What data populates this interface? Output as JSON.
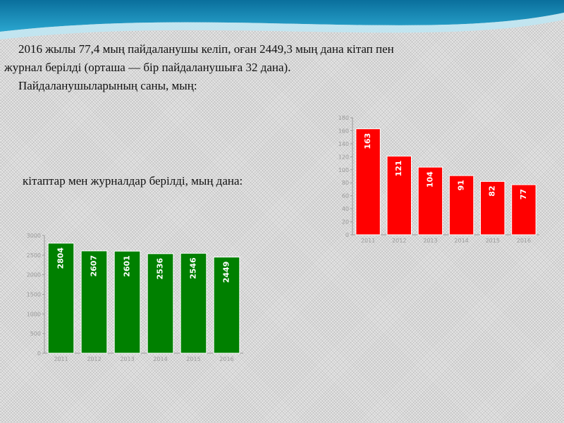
{
  "text": {
    "line1": "2016 жылы 77,4 мың пайдаланушы келіп, оған 2449,3 мың дана кітап пен",
    "line2": "журнал берілді (орташа — бір пайдаланушыға 32 дана).",
    "line3": "Пайдаланушыларының саны, мың:",
    "line4": "кітаптар мен журналдар берілді, мың дана:"
  },
  "colors": {
    "banner_top": "#0b7fae",
    "banner_light": "#bfe6f2",
    "red_bar": "#ff0000",
    "green_bar": "#008000"
  },
  "chart_data": [
    {
      "type": "bar",
      "title": "Пайдаланушыларының саны, мың:",
      "categories": [
        "2011",
        "2012",
        "2013",
        "2014",
        "2015",
        "2016"
      ],
      "values": [
        163,
        121,
        104,
        91,
        82,
        77
      ],
      "value_labels": [
        "163",
        "121",
        "104",
        "91",
        "82",
        "77"
      ],
      "yticks": [
        "0",
        "20",
        "40",
        "60",
        "80",
        "100",
        "120",
        "140",
        "160",
        "180"
      ],
      "ylim": [
        0,
        180
      ],
      "color": "#ff0000",
      "grid": false
    },
    {
      "type": "bar",
      "title": "кітаптар мен журналдар берілді, мың дана:",
      "categories": [
        "2011",
        "2012",
        "2013",
        "2014",
        "2015",
        "2016"
      ],
      "values": [
        2804,
        2607,
        2601,
        2536,
        2546,
        2449
      ],
      "value_labels": [
        "2804",
        "2607",
        "2601",
        "2536",
        "2546",
        "2449"
      ],
      "yticks": [
        "0",
        "500",
        "1000",
        "1500",
        "2000",
        "2500",
        "3000"
      ],
      "ylim": [
        0,
        3000
      ],
      "color": "#008000",
      "grid": false
    }
  ]
}
